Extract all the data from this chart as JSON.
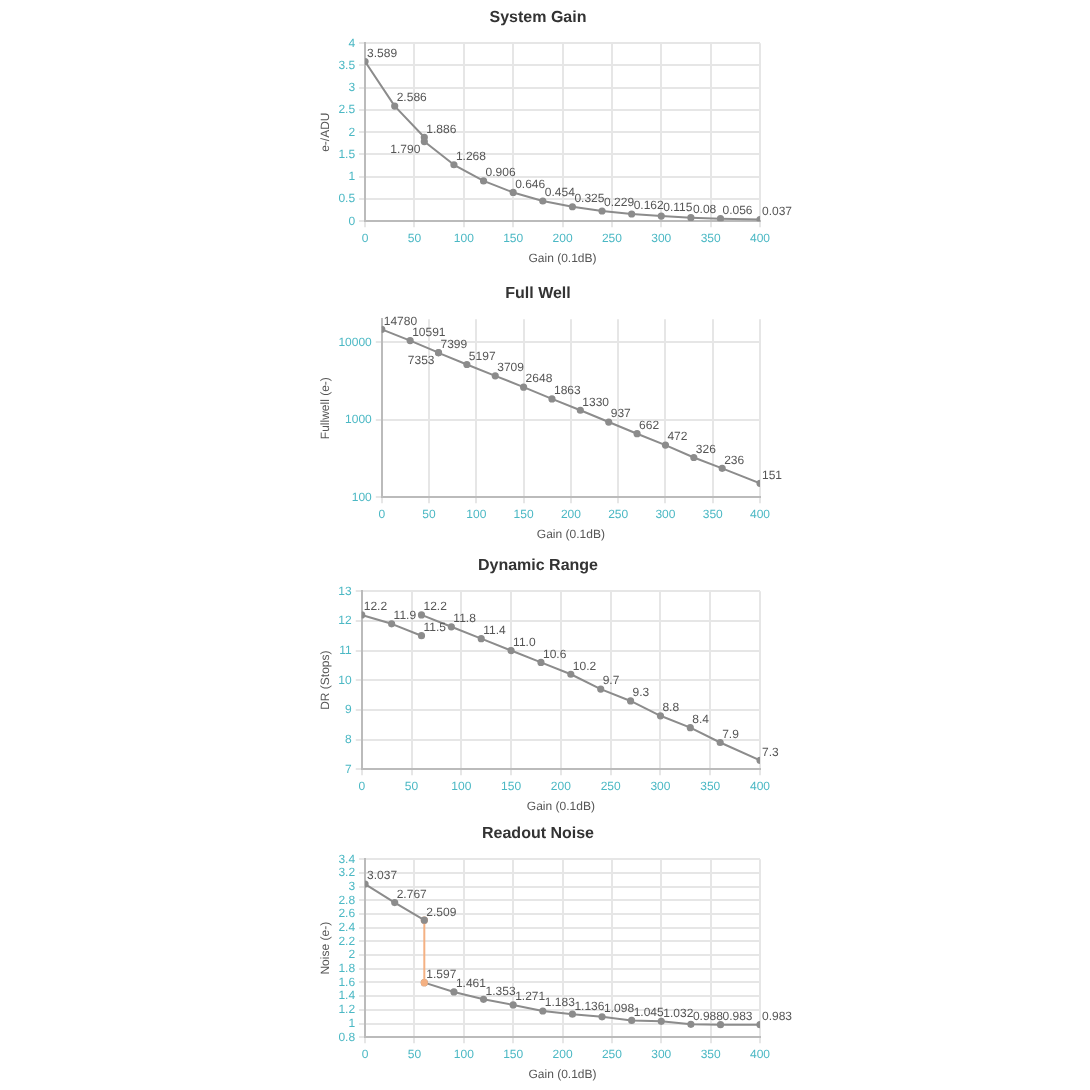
{
  "chart_data": [
    {
      "type": "line",
      "title": "System Gain",
      "xlabel": "Gain (0.1dB)",
      "ylabel": "e-/ADU",
      "xlim": [
        0,
        400
      ],
      "xticks": [
        0,
        50,
        100,
        150,
        200,
        250,
        300,
        350,
        400
      ],
      "ylim": [
        0,
        4
      ],
      "yticks": [
        0,
        0.5,
        1,
        1.5,
        2,
        2.5,
        3,
        3.5,
        4
      ],
      "grid": true,
      "marker": "circle",
      "series": [
        {
          "color": "#8c8c8c",
          "x": [
            0,
            30,
            60,
            60,
            90,
            120,
            150,
            180,
            210,
            240,
            270,
            300,
            330,
            360,
            400
          ],
          "values": [
            3.589,
            2.586,
            1.886,
            1.79,
            1.268,
            0.906,
            0.646,
            0.454,
            0.325,
            0.229,
            0.162,
            0.115,
            0.08,
            0.056,
            0.037
          ],
          "value_labels": [
            "3.589",
            "2.586",
            "1.886",
            "1.790",
            "1.268",
            "0.906",
            "0.646",
            "0.454",
            "0.325",
            "0.229",
            "0.162",
            "0.115",
            "0.08",
            "0.056",
            "0.037"
          ]
        }
      ]
    },
    {
      "type": "line",
      "title": "Full Well",
      "xlabel": "Gain (0.1dB)",
      "ylabel": "Fullwell (e-)",
      "log": "y",
      "xlim": [
        0,
        400
      ],
      "xticks": [
        0,
        50,
        100,
        150,
        200,
        250,
        300,
        350,
        400
      ],
      "ylim": [
        100,
        20000
      ],
      "yticks": [
        100,
        1000,
        10000
      ],
      "grid": true,
      "marker": "circle",
      "series": [
        {
          "color": "#8c8c8c",
          "x": [
            0,
            30,
            60,
            60,
            90,
            120,
            150,
            180,
            210,
            240,
            270,
            300,
            330,
            360,
            400
          ],
          "values": [
            14780,
            10591,
            7399,
            7353,
            5197,
            3709,
            2648,
            1863,
            1330,
            937,
            662,
            472,
            326,
            236,
            151
          ],
          "value_labels": [
            "14780",
            "10591",
            "7399",
            "7353",
            "5197",
            "3709",
            "2648",
            "1863",
            "1330",
            "937",
            "662",
            "472",
            "326",
            "236",
            "151"
          ]
        }
      ]
    },
    {
      "type": "line",
      "title": "Dynamic Range",
      "xlabel": "Gain (0.1dB)",
      "ylabel": "DR (Stops)",
      "xlim": [
        0,
        400
      ],
      "xticks": [
        0,
        50,
        100,
        150,
        200,
        250,
        300,
        350,
        400
      ],
      "ylim": [
        7,
        13
      ],
      "yticks": [
        7,
        8,
        9,
        10,
        11,
        12,
        13
      ],
      "grid": true,
      "marker": "circle",
      "series": [
        {
          "color": "#8c8c8c",
          "x": [
            0,
            30,
            60
          ],
          "values": [
            12.2,
            11.9,
            11.5
          ],
          "value_labels": [
            "12.2",
            "11.9",
            "11.5"
          ]
        },
        {
          "color": "#8c8c8c",
          "x": [
            60,
            90,
            120,
            150,
            180,
            210,
            240,
            270,
            300,
            330,
            360,
            400
          ],
          "values": [
            12.2,
            11.8,
            11.4,
            11.0,
            10.6,
            10.2,
            9.7,
            9.3,
            8.8,
            8.4,
            7.9,
            7.3
          ],
          "value_labels": [
            "12.2",
            "11.8",
            "11.4",
            "11.0",
            "10.6",
            "10.2",
            "9.7",
            "9.3",
            "8.8",
            "8.4",
            "7.9",
            "7.3"
          ]
        }
      ]
    },
    {
      "type": "line",
      "title": "Readout Noise",
      "xlabel": "Gain (0.1dB)",
      "ylabel": "Noise (e-)",
      "xlim": [
        0,
        400
      ],
      "xticks": [
        0,
        50,
        100,
        150,
        200,
        250,
        300,
        350,
        400
      ],
      "ylim": [
        0.8,
        3.4
      ],
      "yticks": [
        0.8,
        1,
        1.2,
        1.4,
        1.6,
        1.8,
        2,
        2.2,
        2.4,
        2.6,
        2.8,
        3,
        3.2,
        3.4
      ],
      "grid": true,
      "marker": "circle",
      "series": [
        {
          "color": "#8c8c8c",
          "x": [
            0,
            30,
            60
          ],
          "values": [
            3.037,
            2.767,
            2.509
          ],
          "value_labels": [
            "3.037",
            "2.767",
            "2.509"
          ]
        },
        {
          "color": "#f4b183",
          "x": [
            60,
            60
          ],
          "values": [
            2.509,
            1.597
          ],
          "value_labels": [
            null,
            null
          ]
        },
        {
          "color": "#8c8c8c",
          "x": [
            60,
            90,
            120,
            150,
            180,
            210,
            240,
            270,
            300,
            330,
            360,
            400
          ],
          "values": [
            1.597,
            1.461,
            1.353,
            1.271,
            1.183,
            1.136,
            1.098,
            1.045,
            1.032,
            0.988,
            0.983,
            0.983
          ],
          "value_labels": [
            "1.597",
            "1.461",
            "1.353",
            "1.271",
            "1.183",
            "1.136",
            "1.098",
            "1.045",
            "1.032",
            "0.988",
            "0.983",
            "0.983"
          ]
        }
      ]
    }
  ]
}
